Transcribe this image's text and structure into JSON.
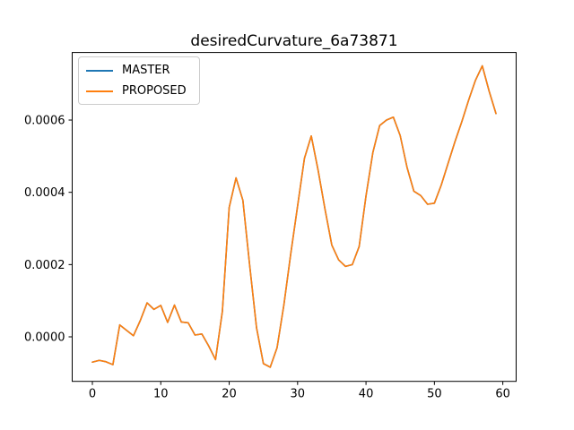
{
  "chart_data": {
    "type": "line",
    "title": "desiredCurvature_6a73871",
    "xlabel": "",
    "ylabel": "",
    "xlim": [
      -2.95,
      61.95
    ],
    "ylim": [
      -0.0001232,
      0.000787
    ],
    "x_ticks": [
      0,
      10,
      20,
      30,
      40,
      50,
      60
    ],
    "x_tick_labels": [
      "0",
      "10",
      "20",
      "30",
      "40",
      "50",
      "60"
    ],
    "y_ticks": [
      0.0,
      0.0002,
      0.0004,
      0.0006
    ],
    "y_tick_labels": [
      "0.0000",
      "0.0002",
      "0.0004",
      "0.0006"
    ],
    "grid": false,
    "legend_position": "upper-left",
    "frame_color": "#000000",
    "x": [
      0,
      1,
      2,
      3,
      4,
      5,
      6,
      7,
      8,
      9,
      10,
      11,
      12,
      13,
      14,
      15,
      16,
      17,
      18,
      19,
      20,
      21,
      22,
      23,
      24,
      25,
      26,
      27,
      28,
      29,
      30,
      31,
      32,
      33,
      34,
      35,
      36,
      37,
      38,
      39,
      40,
      41,
      42,
      43,
      44,
      45,
      46,
      47,
      48,
      49,
      50,
      51,
      52,
      53,
      54,
      55,
      56,
      57,
      58,
      59
    ],
    "series": [
      {
        "name": "MASTER",
        "color": "#1f77b4",
        "values": [
          -7e-05,
          -6.5e-05,
          -6.9e-05,
          -7.7e-05,
          3.3e-05,
          1.8e-05,
          3e-06,
          4.5e-05,
          9.4e-05,
          7.6e-05,
          8.7e-05,
          4e-05,
          8.8e-05,
          4.1e-05,
          3.9e-05,
          5e-06,
          8e-06,
          -2.5e-05,
          -6.3e-05,
          7e-05,
          0.000358,
          0.00044,
          0.000378,
          0.000197,
          2.5e-05,
          -7.4e-05,
          -8.4e-05,
          -3e-05,
          8.9e-05,
          0.00023,
          0.000362,
          0.000494,
          0.000556,
          0.000461,
          0.000354,
          0.000254,
          0.000213,
          0.000195,
          0.0002,
          0.00025,
          0.00039,
          0.00051,
          0.000585,
          0.0006,
          0.000608,
          0.000557,
          0.000469,
          0.000403,
          0.000391,
          0.000367,
          0.00037,
          0.00042,
          0.00048,
          0.00054,
          0.000595,
          0.000655,
          0.00071,
          0.00075,
          0.00068,
          0.000618
        ]
      },
      {
        "name": "PROPOSED",
        "color": "#ff7f0e",
        "values": [
          -7e-05,
          -6.5e-05,
          -6.9e-05,
          -7.7e-05,
          3.3e-05,
          1.8e-05,
          3e-06,
          4.5e-05,
          9.4e-05,
          7.6e-05,
          8.7e-05,
          4e-05,
          8.8e-05,
          4.1e-05,
          3.9e-05,
          5e-06,
          8e-06,
          -2.5e-05,
          -6.3e-05,
          7e-05,
          0.000358,
          0.00044,
          0.000378,
          0.000197,
          2.5e-05,
          -7.4e-05,
          -8.4e-05,
          -3e-05,
          8.9e-05,
          0.00023,
          0.000362,
          0.000494,
          0.000556,
          0.000461,
          0.000354,
          0.000254,
          0.000213,
          0.000195,
          0.0002,
          0.00025,
          0.00039,
          0.00051,
          0.000585,
          0.0006,
          0.000608,
          0.000557,
          0.000469,
          0.000403,
          0.000391,
          0.000367,
          0.00037,
          0.00042,
          0.00048,
          0.00054,
          0.000595,
          0.000655,
          0.00071,
          0.00075,
          0.00068,
          0.000618
        ]
      }
    ]
  }
}
